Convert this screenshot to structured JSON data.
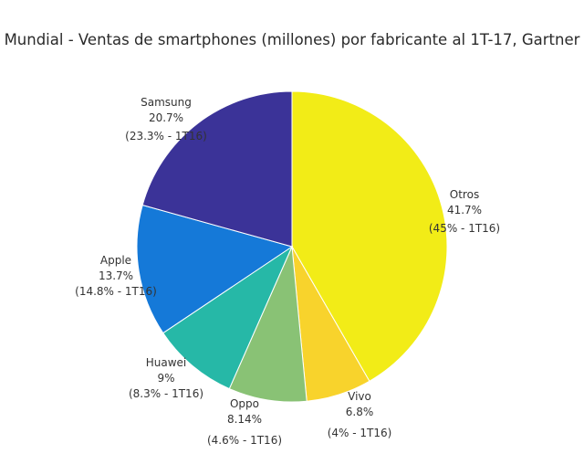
{
  "chart_data": {
    "type": "pie",
    "title": "Mundial - Ventas de smartphones (millones) por fabricante al 1T-17, Gartner",
    "slices": [
      {
        "name": "Otros",
        "value": 41.7,
        "pct_label": "41.7%",
        "prev_label": "(45% - 1T16)",
        "color": "#f2ec17"
      },
      {
        "name": "Vivo",
        "value": 6.8,
        "pct_label": "6.8%",
        "prev_label": "(4% - 1T16)",
        "color": "#f8d32c"
      },
      {
        "name": "Oppo",
        "value": 8.14,
        "pct_label": "8.14%",
        "prev_label": "(4.6% - 1T16)",
        "color": "#89c275"
      },
      {
        "name": "Huawei",
        "value": 9,
        "pct_label": "9%",
        "prev_label": "(8.3% - 1T16)",
        "color": "#26b8a7"
      },
      {
        "name": "Apple",
        "value": 13.7,
        "pct_label": "13.7%",
        "prev_label": "(14.8% - 1T16)",
        "color": "#1579d8"
      },
      {
        "name": "Samsung",
        "value": 20.7,
        "pct_label": "20.7%",
        "prev_label": "(23.3% - 1T16)",
        "color": "#3b3398"
      }
    ],
    "start": "12 o'clock",
    "direction": "clockwise",
    "legend": "none"
  }
}
